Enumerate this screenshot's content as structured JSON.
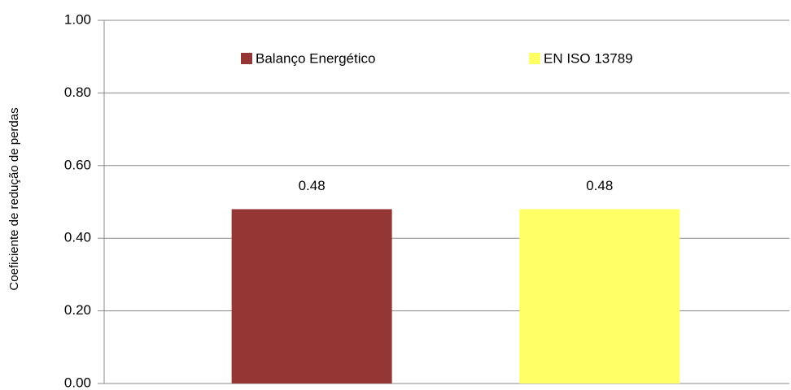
{
  "chart_data": {
    "type": "bar",
    "ylabel": "Coeficiente de redução de perdas",
    "series": [
      {
        "name": "Balanço Energético",
        "color": "#943634",
        "values": [
          0.48
        ]
      },
      {
        "name": "EN ISO 13789",
        "color": "#FFFF66",
        "values": [
          0.48
        ]
      }
    ],
    "ylim": [
      0,
      1
    ],
    "yticks": [
      {
        "value": 0,
        "label": "0.00"
      },
      {
        "value": 0.2,
        "label": "0.20"
      },
      {
        "value": 0.4,
        "label": "0.40"
      },
      {
        "value": 0.6,
        "label": "0.60"
      },
      {
        "value": 0.8,
        "label": "0.80"
      },
      {
        "value": 1,
        "label": "1.00"
      }
    ],
    "grid": true,
    "legend": "top"
  }
}
